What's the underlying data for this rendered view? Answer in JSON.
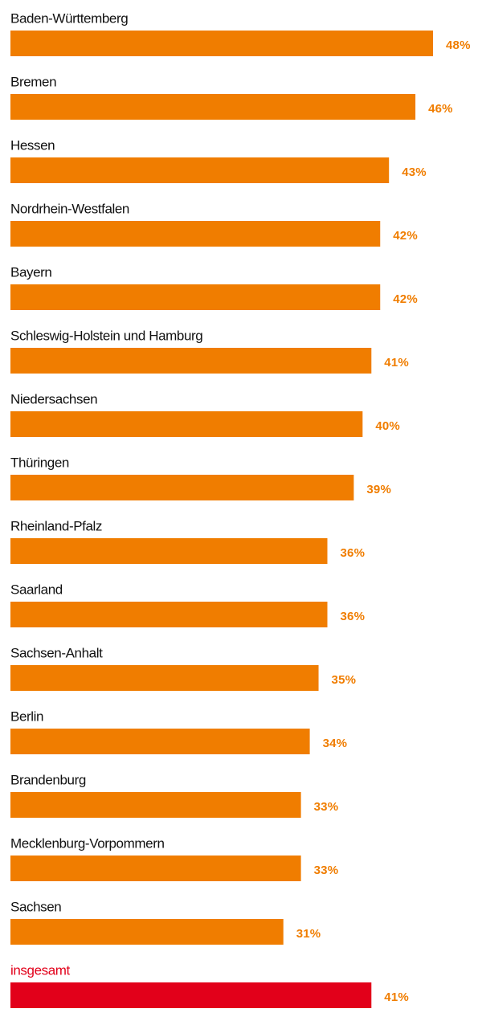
{
  "chart_data": {
    "type": "hbar",
    "categories": [
      "Baden-Württemberg",
      "Bremen",
      "Hessen",
      "Nordrhein-Westfalen",
      "Bayern",
      "Schleswig-Holstein und Hamburg",
      "Niedersachsen",
      "Thüringen",
      "Rheinland-Pfalz",
      "Saarland",
      "Sachsen-Anhalt",
      "Berlin",
      "Brandenburg",
      "Mecklenburg-Vorpommern",
      "Sachsen",
      "insgesamt"
    ],
    "values": [
      48,
      46,
      43,
      42,
      42,
      41,
      40,
      39,
      36,
      36,
      35,
      34,
      33,
      33,
      31,
      41
    ],
    "value_labels": [
      "48%",
      "46%",
      "43%",
      "42%",
      "42%",
      "41%",
      "40%",
      "39%",
      "36%",
      "36%",
      "35%",
      "34%",
      "33%",
      "33%",
      "31%",
      "41%"
    ],
    "color": "#f07d00",
    "highlight_color": "#e2001a",
    "highlight": [
      15
    ]
  }
}
